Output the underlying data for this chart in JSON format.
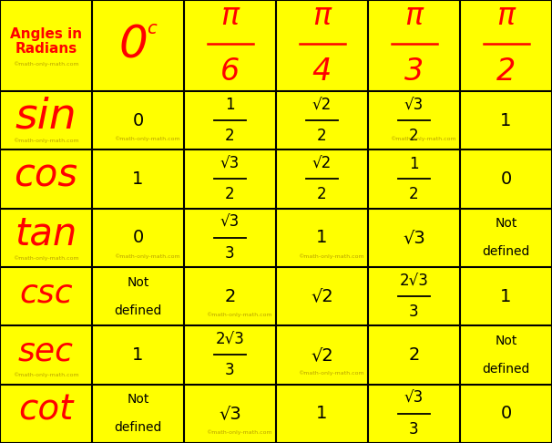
{
  "bg_color": "#FFFF00",
  "line_color": "#000000",
  "red_color": "#FF0000",
  "black_color": "#000000",
  "watermark_color": "#B8A000",
  "watermark": "©math-only-math.com",
  "row_headers": [
    "sin",
    "cos",
    "tan",
    "csc",
    "sec",
    "cot"
  ],
  "n_cols": 6,
  "n_rows": 7,
  "figw": 6.06,
  "figh": 4.86,
  "dpi": 100
}
